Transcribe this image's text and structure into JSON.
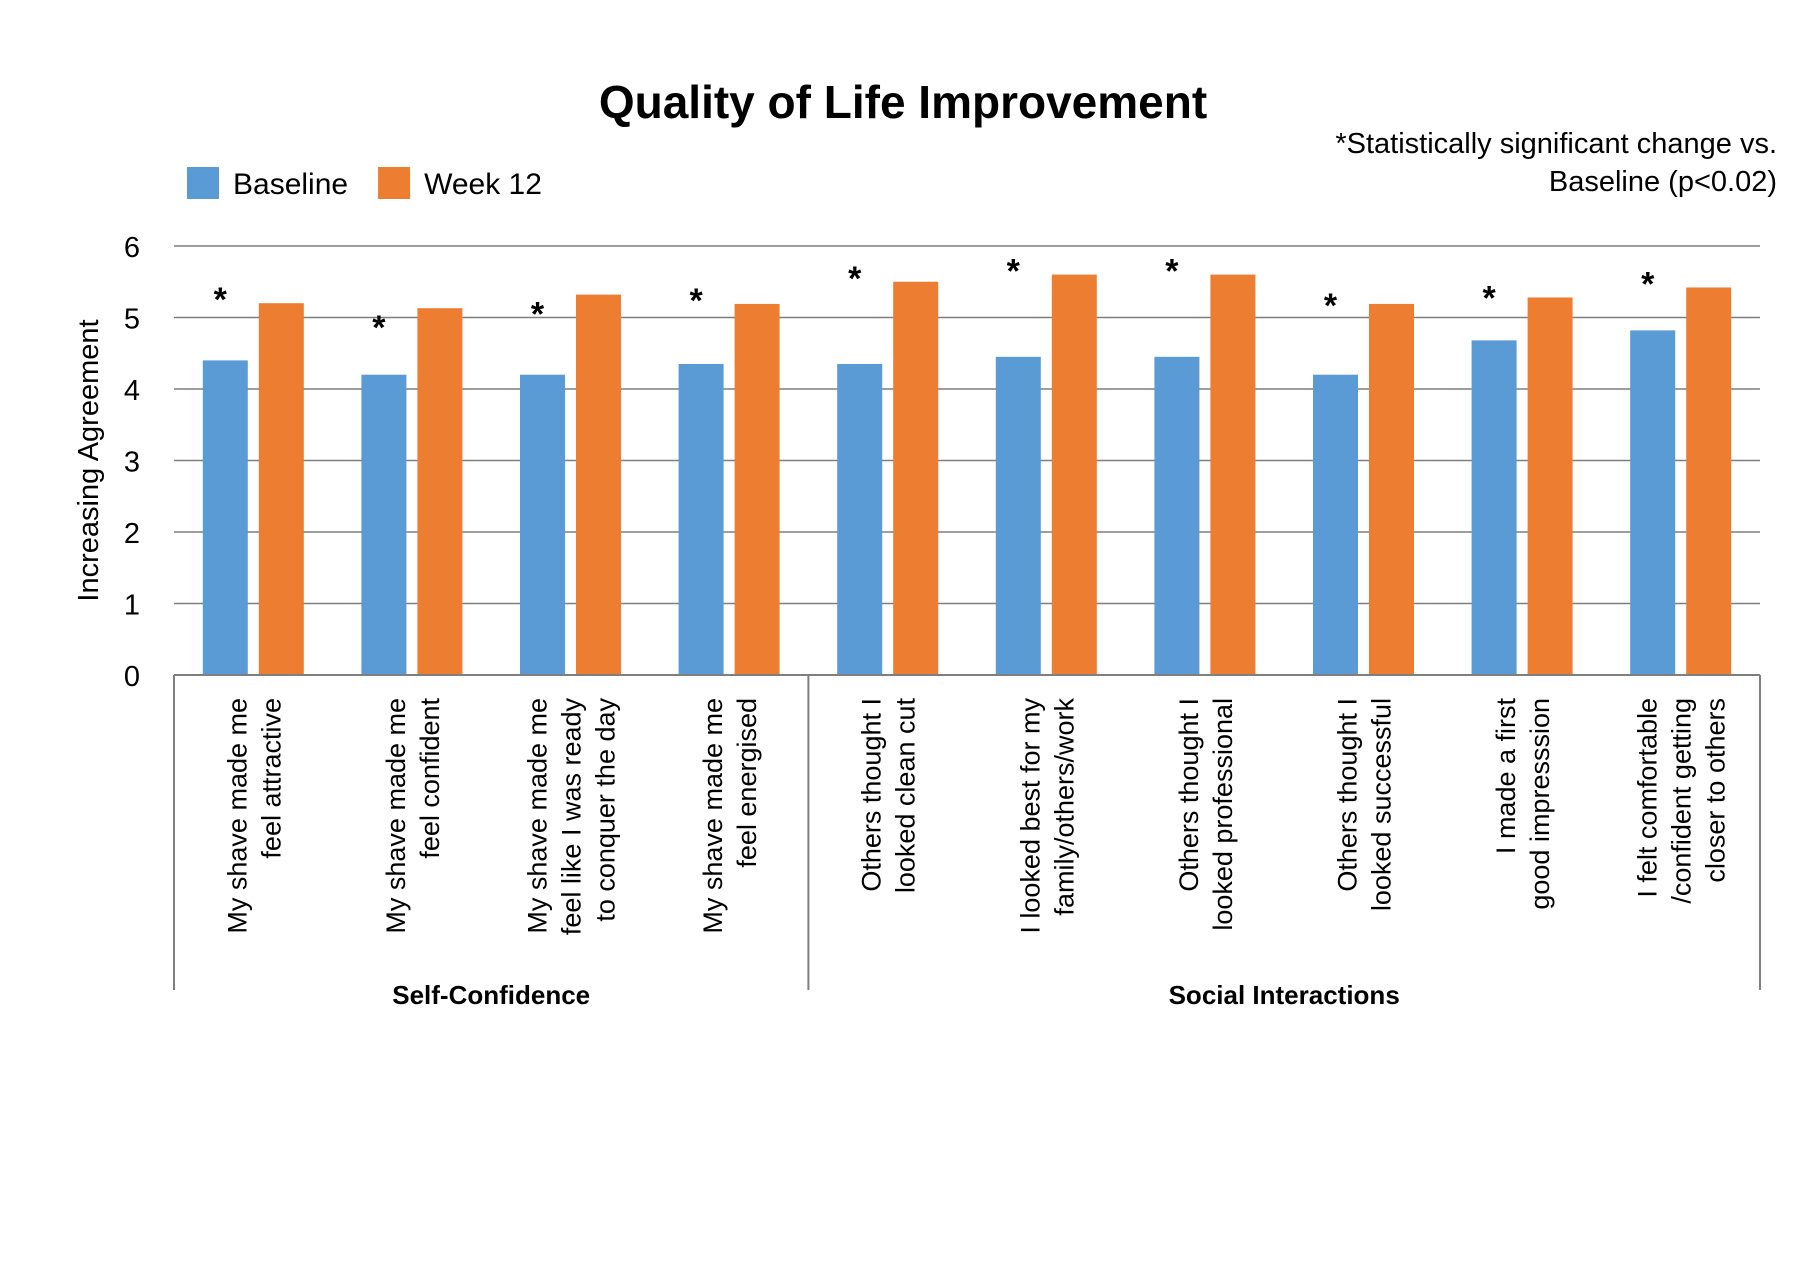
{
  "chart_data": {
    "type": "bar",
    "title": "Quality of Life Improvement",
    "note_lines": [
      "*Statistically significant change vs.",
      "Baseline (p<0.02)"
    ],
    "ylabel": "Increasing Agreement",
    "xlabel": "",
    "ylim": [
      0,
      6
    ],
    "yticks": [
      0,
      1,
      2,
      3,
      4,
      5,
      6
    ],
    "grid": true,
    "legend_position": "top-left",
    "categories": [
      [
        "My shave made me",
        "feel attractive"
      ],
      [
        "My shave made me",
        "feel confident"
      ],
      [
        "My shave made me",
        "feel like I was ready",
        "to conquer the day"
      ],
      [
        "My shave made me",
        "feel energised"
      ],
      [
        "Others thought I",
        "looked clean cut"
      ],
      [
        "I looked best for my",
        "family/others/work"
      ],
      [
        "Others thought I",
        "looked professional"
      ],
      [
        "Others thought I",
        "looked successful"
      ],
      [
        "I made a first",
        "good impresssion"
      ],
      [
        "I felt comfortable",
        "/confident getting",
        "closer to others"
      ]
    ],
    "groups": [
      {
        "label": "Self-Confidence",
        "start": 0,
        "end": 3
      },
      {
        "label": "Social Interactions",
        "start": 4,
        "end": 9
      }
    ],
    "series": [
      {
        "name": "Baseline",
        "color": "#5B9BD5",
        "values": [
          4.4,
          4.2,
          4.2,
          4.35,
          4.35,
          4.45,
          4.45,
          4.2,
          4.68,
          4.82
        ]
      },
      {
        "name": "Week 12",
        "color": "#ED7D31",
        "values": [
          5.2,
          5.13,
          5.32,
          5.19,
          5.5,
          5.6,
          5.6,
          5.19,
          5.28,
          5.42
        ]
      }
    ],
    "significance_marker": "*",
    "significant": [
      true,
      true,
      true,
      true,
      true,
      true,
      true,
      true,
      true,
      true
    ],
    "colors": {
      "grid": "#7f7f7f",
      "axis": "#7f7f7f",
      "text": "#000000"
    }
  }
}
